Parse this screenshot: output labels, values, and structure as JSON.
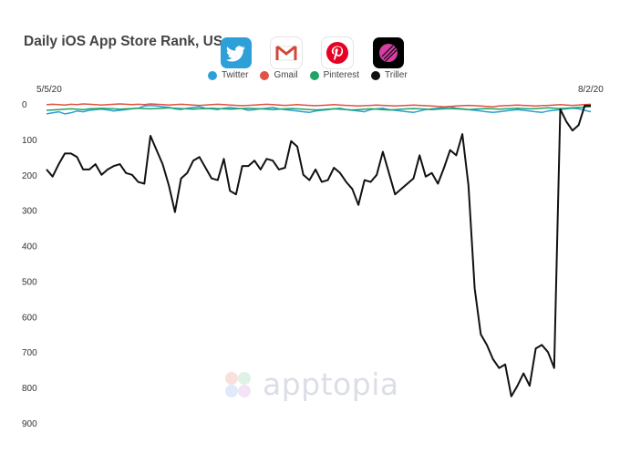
{
  "chart_data": {
    "type": "line",
    "title": "Daily iOS App Store Rank, US",
    "x_start_label": "5/5/20",
    "x_end_label": "8/2/20",
    "num_days": 90,
    "y_ticks": [
      0,
      100,
      200,
      300,
      400,
      500,
      600,
      700,
      800,
      900
    ],
    "ylim": [
      0,
      900
    ],
    "y_inverted": true,
    "grid": false,
    "legend_placement": "top-center",
    "series": [
      {
        "name": "Twitter",
        "color": "#2d9fd9",
        "values": [
          28,
          25,
          22,
          28,
          25,
          20,
          22,
          18,
          16,
          15,
          17,
          20,
          18,
          16,
          14,
          12,
          6,
          4,
          6,
          8,
          10,
          14,
          16,
          12,
          10,
          8,
          12,
          14,
          16,
          12,
          10,
          12,
          14,
          18,
          16,
          14,
          12,
          10,
          14,
          16,
          18,
          20,
          22,
          24,
          20,
          18,
          16,
          14,
          12,
          16,
          18,
          20,
          22,
          16,
          14,
          12,
          16,
          18,
          20,
          22,
          24,
          20,
          16,
          14,
          12,
          10,
          8,
          12,
          14,
          16,
          18,
          20,
          22,
          24,
          22,
          20,
          18,
          16,
          18,
          20,
          22,
          24,
          20,
          18,
          16,
          14,
          12,
          14,
          18,
          22
        ]
      },
      {
        "name": "Gmail",
        "color": "#e05246",
        "values": [
          2,
          1,
          2,
          3,
          1,
          2,
          0,
          1,
          2,
          3,
          2,
          1,
          0,
          1,
          2,
          1,
          2,
          0,
          1,
          2,
          3,
          2,
          1,
          2,
          3,
          4,
          3,
          2,
          1,
          2,
          3,
          4,
          5,
          4,
          3,
          2,
          1,
          2,
          3,
          4,
          3,
          2,
          3,
          4,
          5,
          4,
          3,
          2,
          3,
          4,
          5,
          6,
          5,
          4,
          3,
          4,
          5,
          6,
          5,
          4,
          3,
          4,
          5,
          6,
          7,
          8,
          7,
          6,
          5,
          4,
          5,
          6,
          7,
          8,
          6,
          5,
          4,
          3,
          4,
          5,
          6,
          5,
          4,
          3,
          2,
          3,
          4,
          3,
          2,
          1
        ]
      },
      {
        "name": "Pinterest",
        "color": "#1fa463",
        "values": [
          18,
          17,
          16,
          15,
          14,
          15,
          16,
          14,
          13,
          12,
          13,
          14,
          15,
          14,
          13,
          12,
          13,
          14,
          13,
          12,
          11,
          12,
          13,
          14,
          15,
          14,
          13,
          12,
          13,
          14,
          15,
          14,
          13,
          12,
          13,
          14,
          15,
          16,
          15,
          14,
          13,
          14,
          15,
          16,
          17,
          16,
          15,
          14,
          15,
          16,
          17,
          16,
          15,
          14,
          15,
          16,
          17,
          16,
          15,
          14,
          13,
          14,
          15,
          16,
          15,
          14,
          13,
          14,
          15,
          16,
          15,
          14,
          13,
          14,
          15,
          14,
          13,
          12,
          13,
          14,
          13,
          12,
          11,
          12,
          13,
          12,
          11,
          10,
          9,
          8
        ]
      },
      {
        "name": "Triller",
        "color": "#111111",
        "values": [
          185,
          205,
          170,
          140,
          140,
          150,
          185,
          185,
          170,
          200,
          185,
          175,
          170,
          195,
          200,
          220,
          225,
          90,
          130,
          170,
          230,
          305,
          210,
          195,
          160,
          150,
          180,
          210,
          215,
          155,
          245,
          255,
          175,
          175,
          160,
          185,
          155,
          160,
          185,
          180,
          105,
          120,
          200,
          215,
          185,
          220,
          215,
          180,
          195,
          220,
          240,
          285,
          215,
          220,
          200,
          135,
          195,
          255,
          240,
          225,
          210,
          145,
          205,
          195,
          225,
          180,
          130,
          145,
          85,
          230,
          520,
          650,
          680,
          720,
          745,
          735,
          825,
          795,
          760,
          795,
          690,
          680,
          700,
          745,
          15,
          50,
          75,
          60,
          5,
          5
        ]
      }
    ],
    "icons": [
      "twitter-icon",
      "gmail-icon",
      "pinterest-icon",
      "triller-icon"
    ]
  },
  "watermark": {
    "text": "apptopia"
  }
}
